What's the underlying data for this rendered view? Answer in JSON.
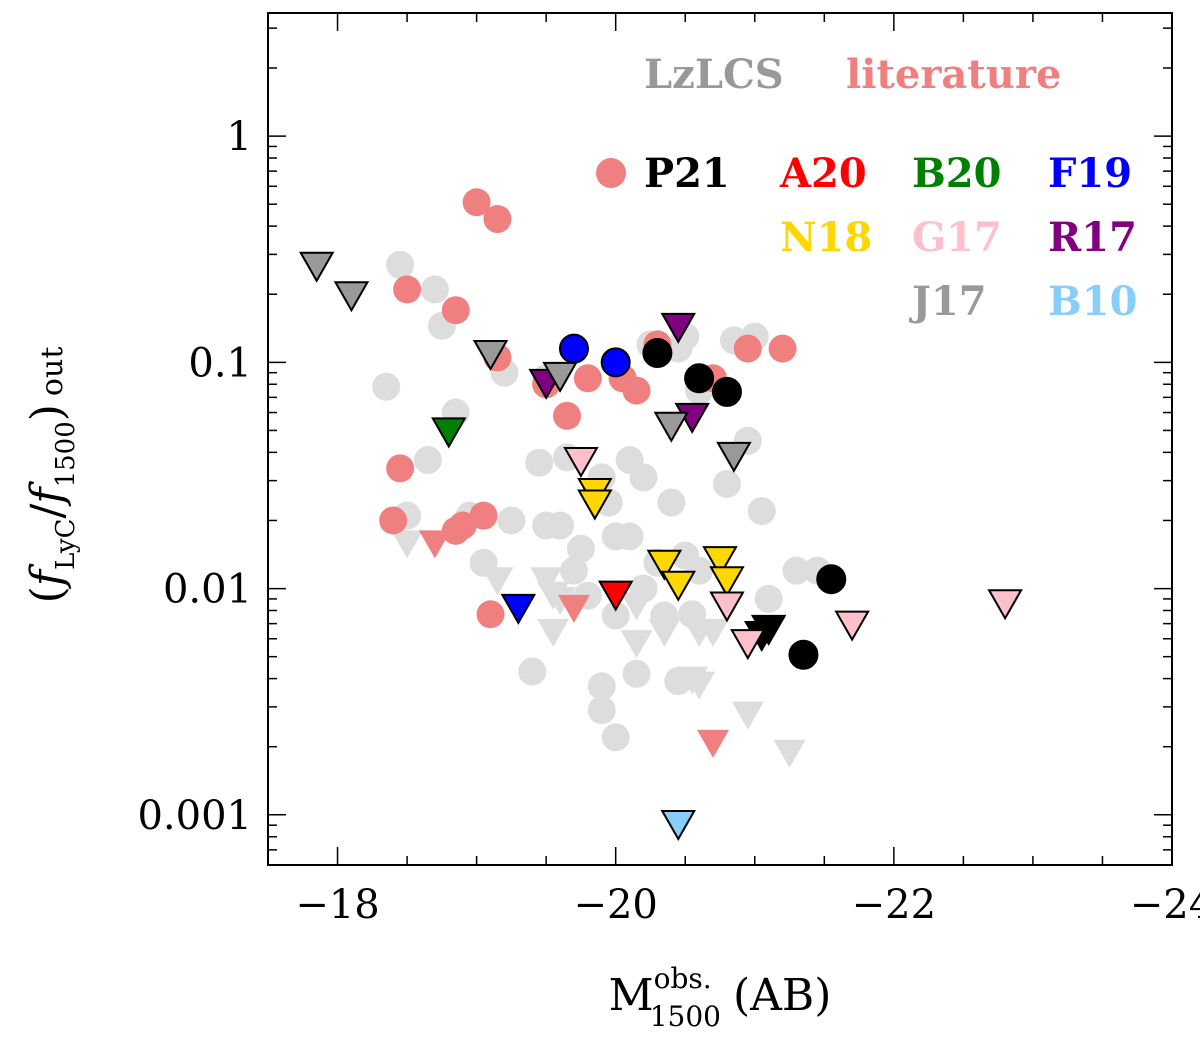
{
  "chart_data": {
    "type": "scatter",
    "title": "",
    "xlabel": {
      "base": "M",
      "sup": "obs.",
      "sub": "1500",
      "suffix": "(AB)"
    },
    "ylabel": {
      "open": "(",
      "f1": "f",
      "sub1": "LyC",
      "slash": "/",
      "f2": "f",
      "sub2": "1500",
      "close": ")",
      "sub3": "out"
    },
    "xlim": [
      -17.5,
      -24.0
    ],
    "ylim": [
      0.0006,
      3.5
    ],
    "yscale": "log",
    "x_ticks": [
      {
        "value": -18,
        "label": "−18"
      },
      {
        "value": -20,
        "label": "−20"
      },
      {
        "value": -22,
        "label": "−22"
      },
      {
        "value": -24,
        "label": "−24"
      }
    ],
    "y_ticks": [
      {
        "value": 0.001,
        "label": "0.001"
      },
      {
        "value": 0.01,
        "label": "0.01"
      },
      {
        "value": 0.1,
        "label": "0.1"
      },
      {
        "value": 1,
        "label": "1"
      }
    ],
    "group_labels": [
      {
        "text": "LzLCS",
        "color": "#999999"
      },
      {
        "text": "literature",
        "color": "#f08080"
      }
    ],
    "legend": [
      {
        "text": "P21",
        "color": "#000000",
        "marker": "#f08080"
      },
      {
        "text": "A20",
        "color": "#ff0000"
      },
      {
        "text": "B20",
        "color": "#008000"
      },
      {
        "text": "F19",
        "color": "#0000ff"
      },
      {
        "text": "N18",
        "color": "#ffd700"
      },
      {
        "text": "G17",
        "color": "#ffc0cb"
      },
      {
        "text": "R17",
        "color": "#800080"
      },
      {
        "text": "J17",
        "color": "#999999"
      },
      {
        "text": "B10",
        "color": "#87cefa"
      }
    ],
    "series": [
      {
        "name": "LzLCS detections",
        "marker": "circle",
        "color": "#dddddd",
        "edge": "none",
        "points": [
          [
            -18.45,
            0.27
          ],
          [
            -18.7,
            0.21
          ],
          [
            -18.75,
            0.145
          ],
          [
            -18.35,
            0.078
          ],
          [
            -18.85,
            0.06
          ],
          [
            -18.65,
            0.037
          ],
          [
            -18.5,
            0.021
          ],
          [
            -18.95,
            0.021
          ],
          [
            -19.2,
            0.09
          ],
          [
            -19.5,
            0.085
          ],
          [
            -19.45,
            0.036
          ],
          [
            -19.65,
            0.038
          ],
          [
            -19.9,
            0.031
          ],
          [
            -20.1,
            0.037
          ],
          [
            -20.2,
            0.031
          ],
          [
            -19.95,
            0.024
          ],
          [
            -20.4,
            0.024
          ],
          [
            -19.25,
            0.02
          ],
          [
            -19.05,
            0.013
          ],
          [
            -19.5,
            0.019
          ],
          [
            -19.6,
            0.019
          ],
          [
            -19.75,
            0.015
          ],
          [
            -20.0,
            0.017
          ],
          [
            -20.1,
            0.017
          ],
          [
            -20.3,
            0.013
          ],
          [
            -20.5,
            0.014
          ],
          [
            -19.7,
            0.012
          ],
          [
            -20.2,
            0.01
          ],
          [
            -19.8,
            0.0093
          ],
          [
            -20.0,
            0.0076
          ],
          [
            -20.35,
            0.0076
          ],
          [
            -20.55,
            0.0077
          ],
          [
            -19.4,
            0.0043
          ],
          [
            -19.9,
            0.0037
          ],
          [
            -20.15,
            0.0042
          ],
          [
            -20.45,
            0.0039
          ],
          [
            -19.9,
            0.0029
          ],
          [
            -20.0,
            0.0022
          ],
          [
            -20.8,
            0.029
          ],
          [
            -20.95,
            0.045
          ],
          [
            -21.05,
            0.022
          ],
          [
            -20.6,
            0.012
          ],
          [
            -21.1,
            0.009
          ],
          [
            -21.3,
            0.012
          ],
          [
            -21.45,
            0.012
          ],
          [
            -20.5,
            0.13
          ],
          [
            -20.85,
            0.125
          ],
          [
            -21.0,
            0.13
          ],
          [
            -20.25,
            0.12
          ],
          [
            -20.45,
            0.115
          ],
          [
            -20.6,
            0.075
          ]
        ]
      },
      {
        "name": "LzLCS upper limits",
        "marker": "triangle_down",
        "color": "#dddddd",
        "edge": "none",
        "points": [
          [
            -18.5,
            0.016
          ],
          [
            -19.15,
            0.011
          ],
          [
            -19.5,
            0.011
          ],
          [
            -19.55,
            0.0095
          ],
          [
            -19.6,
            0.009
          ],
          [
            -19.55,
            0.0065
          ],
          [
            -19.7,
            0.0085
          ],
          [
            -20.15,
            0.0085
          ],
          [
            -20.35,
            0.0065
          ],
          [
            -20.6,
            0.0065
          ],
          [
            -20.7,
            0.0065
          ],
          [
            -20.15,
            0.0058
          ],
          [
            -20.55,
            0.004
          ],
          [
            -20.6,
            0.0038
          ],
          [
            -20.95,
            0.0028
          ],
          [
            -21.25,
            0.0019
          ]
        ]
      },
      {
        "name": "Literature (coral)",
        "marker": "circle",
        "color": "#f08080",
        "edge": "none",
        "points": [
          [
            -19.0,
            0.51
          ],
          [
            -19.15,
            0.43
          ],
          [
            -18.5,
            0.21
          ],
          [
            -18.85,
            0.17
          ],
          [
            -19.15,
            0.105
          ],
          [
            -19.5,
            0.08
          ],
          [
            -19.65,
            0.058
          ],
          [
            -19.8,
            0.085
          ],
          [
            -20.05,
            0.085
          ],
          [
            -20.15,
            0.075
          ],
          [
            -20.3,
            0.12
          ],
          [
            -20.7,
            0.085
          ],
          [
            -20.95,
            0.115
          ],
          [
            -21.2,
            0.115
          ],
          [
            -18.45,
            0.034
          ],
          [
            -18.4,
            0.02
          ],
          [
            -18.85,
            0.018
          ],
          [
            -18.9,
            0.019
          ],
          [
            -19.05,
            0.021
          ],
          [
            -19.1,
            0.0077
          ]
        ]
      },
      {
        "name": "Literature upper limits (coral)",
        "marker": "triangle_down",
        "color": "#f08080",
        "edge": "none",
        "points": [
          [
            -18.7,
            0.016
          ],
          [
            -19.7,
            0.0083
          ],
          [
            -20.7,
            0.0021
          ]
        ]
      },
      {
        "name": "P21",
        "marker": "circle",
        "color": "#000000",
        "edge": "#000000",
        "points": [
          [
            -20.3,
            0.11
          ],
          [
            -20.6,
            0.085
          ],
          [
            -20.8,
            0.074
          ],
          [
            -21.55,
            0.011
          ],
          [
            -21.35,
            0.0051
          ]
        ]
      },
      {
        "name": "P21 upper limits",
        "marker": "triangle_down",
        "color": "#000000",
        "edge": "#000000",
        "points": [
          [
            -21.1,
            0.0067
          ],
          [
            -21.05,
            0.0063
          ]
        ]
      },
      {
        "name": "F19",
        "marker": "circle",
        "color": "#0000ff",
        "edge": "#000000",
        "points": [
          [
            -19.7,
            0.115
          ],
          [
            -20.0,
            0.1
          ]
        ]
      },
      {
        "name": "F19 upper limits",
        "marker": "triangle_down",
        "color": "#0000ff",
        "edge": "#000000",
        "points": [
          [
            -19.3,
            0.0083
          ]
        ]
      },
      {
        "name": "A20",
        "marker": "triangle_down",
        "color": "#ff0000",
        "edge": "#000000",
        "points": [
          [
            -20.0,
            0.0095
          ]
        ]
      },
      {
        "name": "B20",
        "marker": "triangle_down",
        "color": "#008000",
        "edge": "#000000",
        "points": [
          [
            -18.8,
            0.05
          ]
        ]
      },
      {
        "name": "N18",
        "marker": "triangle_down",
        "color": "#ffd700",
        "edge": "#000000",
        "points": [
          [
            -19.85,
            0.027
          ],
          [
            -19.85,
            0.024
          ],
          [
            -20.35,
            0.013
          ],
          [
            -20.45,
            0.0105
          ],
          [
            -20.75,
            0.0135
          ],
          [
            -20.8,
            0.011
          ]
        ]
      },
      {
        "name": "G17",
        "marker": "triangle_down",
        "color": "#ffc0cb",
        "edge": "#000000",
        "points": [
          [
            -19.75,
            0.037
          ],
          [
            -20.8,
            0.0085
          ],
          [
            -20.95,
            0.0058
          ],
          [
            -21.7,
            0.007
          ],
          [
            -22.8,
            0.0087
          ]
        ]
      },
      {
        "name": "R17",
        "marker": "triangle_down",
        "color": "#800080",
        "edge": "#000000",
        "points": [
          [
            -20.45,
            0.145
          ],
          [
            -19.5,
            0.082
          ],
          [
            -20.55,
            0.058
          ]
        ]
      },
      {
        "name": "J17",
        "marker": "triangle_down",
        "color": "#999999",
        "edge": "#000000",
        "points": [
          [
            -17.85,
            0.27
          ],
          [
            -18.1,
            0.2
          ],
          [
            -19.1,
            0.11
          ],
          [
            -19.6,
            0.088
          ],
          [
            -20.4,
            0.053
          ],
          [
            -20.85,
            0.039
          ]
        ]
      },
      {
        "name": "B10",
        "marker": "triangle_down",
        "color": "#87cefa",
        "edge": "#000000",
        "points": [
          [
            -20.45,
            0.00092
          ]
        ]
      }
    ]
  }
}
